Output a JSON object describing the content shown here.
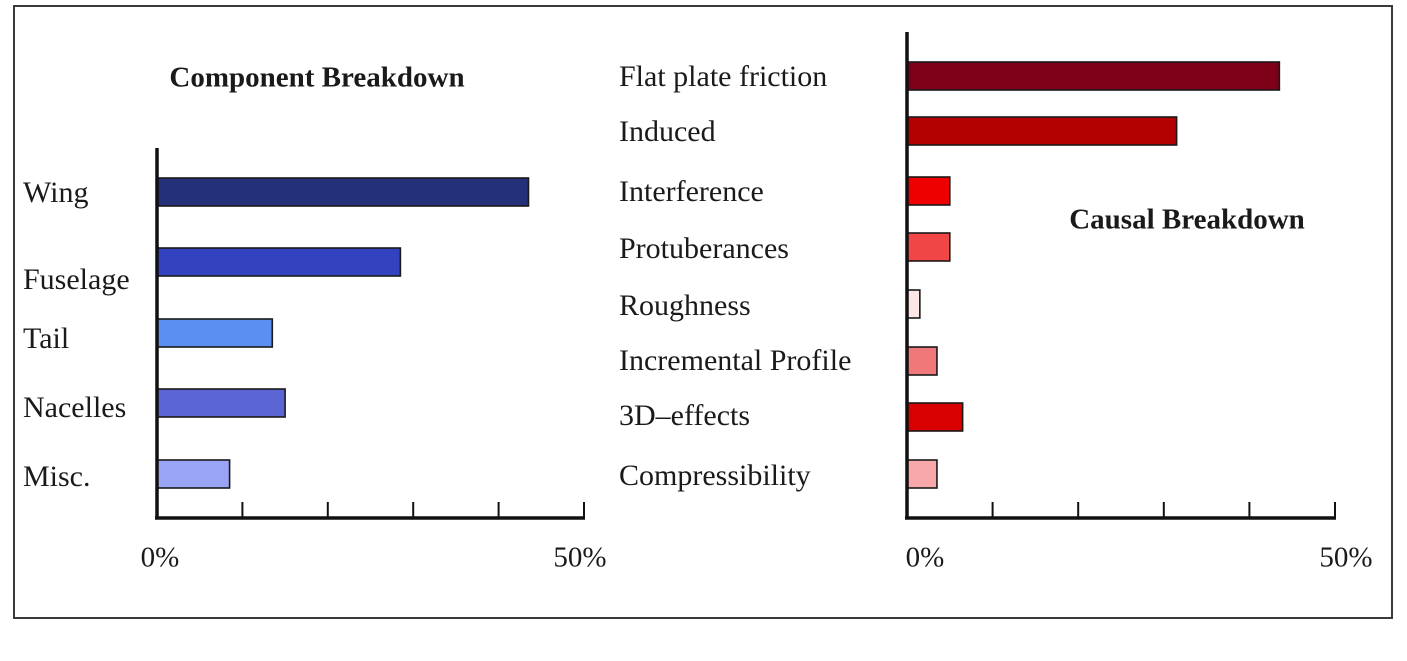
{
  "chart_data": [
    {
      "type": "bar",
      "orientation": "horizontal",
      "title": "Component Breakdown",
      "categories": [
        "Wing",
        "Fuselage",
        "Tail",
        "Nacelles",
        "Misc."
      ],
      "values": [
        43.5,
        28.5,
        13.5,
        15.0,
        8.5
      ],
      "colors": [
        "#24307a",
        "#3343c0",
        "#5b8ff0",
        "#5a64d2",
        "#9aa4f4"
      ],
      "xlim": [
        0,
        50
      ],
      "x_tick_labels": [
        "0%",
        "50%"
      ],
      "legend": false
    },
    {
      "type": "bar",
      "orientation": "horizontal",
      "title": "Causal Breakdown",
      "categories": [
        "Flat plate friction",
        "Induced",
        "Interference",
        "Protuberances",
        "Roughness",
        "Incremental Profile",
        "3D–effects",
        "Compressibility"
      ],
      "values": [
        43.5,
        31.5,
        5.0,
        5.0,
        1.5,
        3.5,
        6.5,
        3.5
      ],
      "colors": [
        "#7d0018",
        "#b30000",
        "#ee0000",
        "#f04646",
        "#fce6e6",
        "#f07878",
        "#d80000",
        "#f8a8a8"
      ],
      "xlim": [
        0,
        50
      ],
      "x_tick_labels": [
        "0%",
        "50%"
      ],
      "legend": false
    }
  ]
}
